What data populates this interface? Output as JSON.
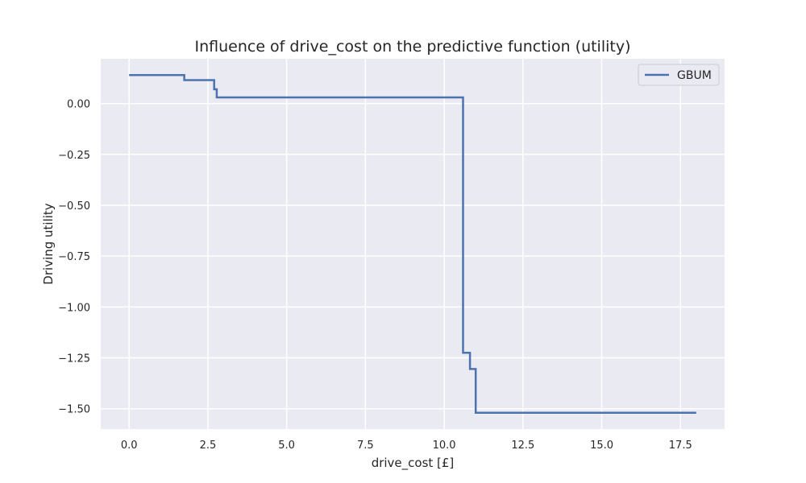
{
  "chart_data": {
    "type": "line",
    "title": "Influence of drive_cost on the predictive function (utility)",
    "xlabel": "drive_cost [£]",
    "ylabel": "Driving utility",
    "xlim": [
      -0.9,
      18.9
    ],
    "ylim": [
      -1.6,
      0.22
    ],
    "x_ticks": [
      0.0,
      2.5,
      5.0,
      7.5,
      10.0,
      12.5,
      15.0,
      17.5
    ],
    "x_tick_labels": [
      "0.0",
      "2.5",
      "5.0",
      "7.5",
      "10.0",
      "12.5",
      "15.0",
      "17.5"
    ],
    "y_ticks": [
      0.0,
      -0.25,
      -0.5,
      -0.75,
      -1.0,
      -1.25,
      -1.5
    ],
    "y_tick_labels": [
      "0.00",
      "−0.25",
      "−0.50",
      "−0.75",
      "−1.00",
      "−1.25",
      "−1.50"
    ],
    "grid": true,
    "legend": {
      "position": "top-right"
    },
    "colors": {
      "background": "#eaeaf2",
      "grid": "#ffffff",
      "line": "#4c72b0",
      "text": "#262626"
    },
    "series": [
      {
        "name": "GBUM",
        "x": [
          0.0,
          1.75,
          1.75,
          2.7,
          2.7,
          2.78,
          2.78,
          10.6,
          10.6,
          10.82,
          10.82,
          11.0,
          11.0,
          18.0
        ],
        "y": [
          0.14,
          0.14,
          0.115,
          0.115,
          0.07,
          0.07,
          0.03,
          0.03,
          -1.225,
          -1.225,
          -1.305,
          -1.305,
          -1.52,
          -1.52
        ]
      }
    ]
  }
}
